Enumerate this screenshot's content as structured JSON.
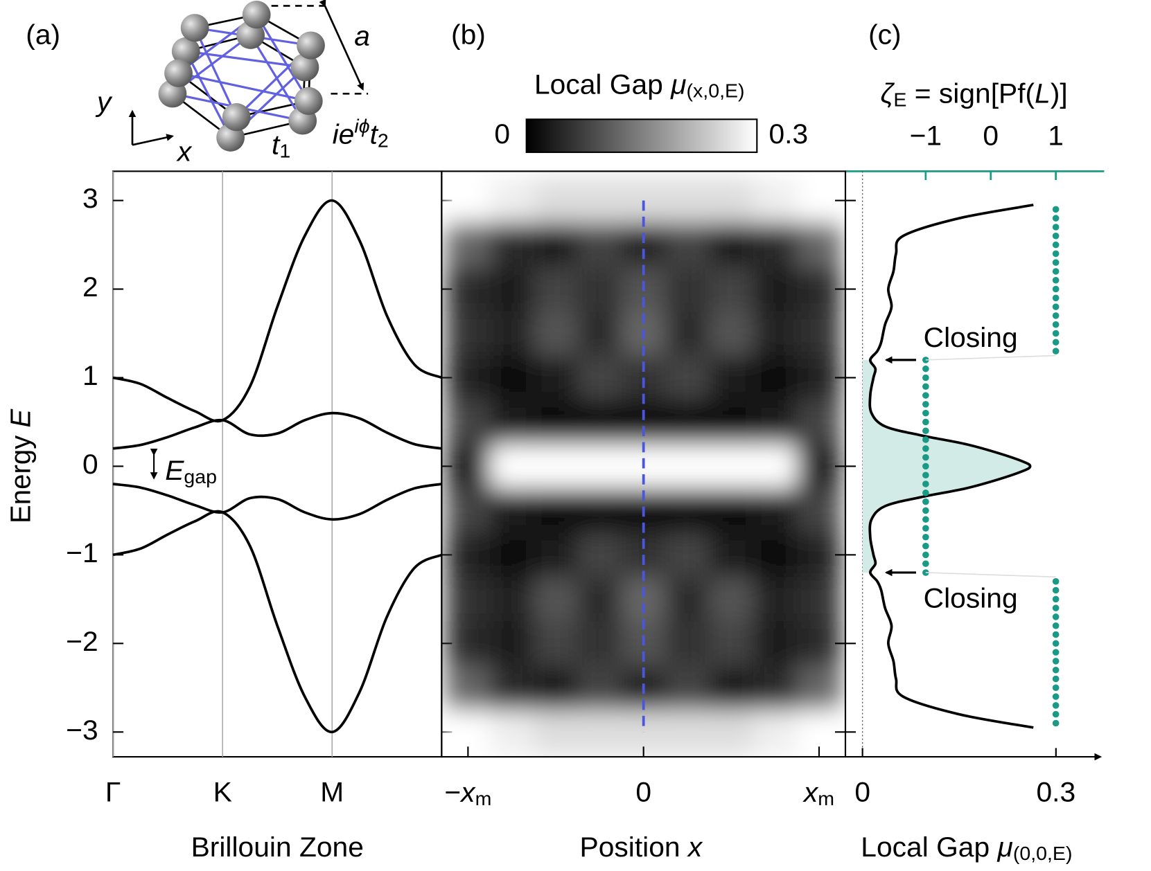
{
  "chart_data": [
    {
      "type": "line",
      "panel_label": "(a)",
      "ylabel": [
        {
          "text": "Energy "
        },
        {
          "text": "E",
          "style": "italic"
        }
      ],
      "xlabel": "Brillouin Zone",
      "x": [
        0,
        0.25,
        0.5,
        0.75,
        1,
        1.25,
        1.5,
        1.75,
        2,
        2.25,
        2.5,
        2.75,
        3
      ],
      "xlim": [
        0,
        3
      ],
      "xticks": [
        {
          "value": 0,
          "label": "Γ"
        },
        {
          "value": 1,
          "label": "K"
        },
        {
          "value": 2,
          "label": "M"
        }
      ],
      "grid_x": true,
      "ylim": [
        -3.28,
        3.33
      ],
      "yticks": [
        {
          "value": -3,
          "label": "−3"
        },
        {
          "value": -2,
          "label": "−2"
        },
        {
          "value": -1,
          "label": "−1"
        },
        0,
        1,
        2,
        3
      ],
      "color": "#000000",
      "series": [
        {
          "values": [
            1,
            0.93,
            0.77,
            0.62,
            0.52,
            0.9,
            1.8,
            2.6,
            3,
            2.55,
            1.7,
            1.15,
            1
          ]
        },
        {
          "values": [
            0.2,
            0.24,
            0.33,
            0.44,
            0.52,
            0.36,
            0.37,
            0.52,
            0.6,
            0.54,
            0.38,
            0.25,
            0.2
          ]
        },
        {
          "values": [
            -0.2,
            -0.24,
            -0.33,
            -0.44,
            -0.52,
            -0.36,
            -0.37,
            -0.52,
            -0.6,
            -0.54,
            -0.38,
            -0.25,
            -0.2
          ]
        },
        {
          "values": [
            -1,
            -0.93,
            -0.77,
            -0.62,
            -0.52,
            -0.9,
            -1.8,
            -2.6,
            -3,
            -2.55,
            -1.7,
            -1.15,
            -1
          ]
        }
      ],
      "gap_label": [
        {
          "text": "E",
          "style": "italic"
        },
        {
          "text": "gap",
          "style": "sub"
        }
      ],
      "inset": {
        "a": "a",
        "y": "y",
        "x": "x",
        "t1": [
          {
            "text": "t",
            "style": "italic"
          },
          {
            "text": "1",
            "style": "sub"
          }
        ],
        "t2": [
          {
            "text": "ie",
            "style": "italic"
          },
          {
            "text": "iϕ",
            "style": "sup"
          },
          {
            "text": "t",
            "style": "italic"
          },
          {
            "text": "2",
            "style": "sub"
          }
        ],
        "t2_color": "#5a5ae6"
      }
    },
    {
      "type": "heatmap",
      "panel_label": "(b)",
      "xlabel": [
        {
          "text": "Position "
        },
        {
          "text": "x",
          "style": "italic"
        }
      ],
      "x": [
        -1,
        -0.75,
        -0.5,
        -0.25,
        0,
        0.25,
        0.5,
        0.75,
        1
      ],
      "y": [
        3,
        2.5,
        2,
        1.5,
        1,
        0.5,
        0,
        -0.5,
        -1,
        -1.5,
        -2,
        -2.5,
        -3
      ],
      "values": [
        [
          0.3,
          0.28,
          0.26,
          0.26,
          0.26,
          0.26,
          0.26,
          0.28,
          0.3
        ],
        [
          0.12,
          0.05,
          0.03,
          0.08,
          0.04,
          0.08,
          0.03,
          0.05,
          0.12
        ],
        [
          0.05,
          0.03,
          0.08,
          0.06,
          0.1,
          0.06,
          0.08,
          0.03,
          0.05
        ],
        [
          0.06,
          0.04,
          0.1,
          0.05,
          0.12,
          0.05,
          0.1,
          0.04,
          0.06
        ],
        [
          0.04,
          0.02,
          0.03,
          0.08,
          0.06,
          0.08,
          0.03,
          0.02,
          0.04
        ],
        [
          0.08,
          0.03,
          0.02,
          0.02,
          0.02,
          0.02,
          0.02,
          0.03,
          0.08
        ],
        [
          0.03,
          0.3,
          0.3,
          0.3,
          0.3,
          0.3,
          0.3,
          0.3,
          0.03
        ],
        [
          0.08,
          0.03,
          0.02,
          0.02,
          0.02,
          0.02,
          0.02,
          0.03,
          0.08
        ],
        [
          0.04,
          0.02,
          0.03,
          0.08,
          0.06,
          0.08,
          0.03,
          0.02,
          0.04
        ],
        [
          0.06,
          0.04,
          0.1,
          0.05,
          0.12,
          0.05,
          0.1,
          0.04,
          0.06
        ],
        [
          0.05,
          0.03,
          0.08,
          0.06,
          0.1,
          0.06,
          0.08,
          0.03,
          0.05
        ],
        [
          0.12,
          0.05,
          0.03,
          0.08,
          0.04,
          0.08,
          0.03,
          0.05,
          0.12
        ],
        [
          0.3,
          0.28,
          0.26,
          0.26,
          0.26,
          0.26,
          0.26,
          0.28,
          0.3
        ]
      ],
      "xlim": [
        -1.15,
        1.15
      ],
      "xticks": [
        {
          "value": -1,
          "label": [
            {
              "text": "−"
            },
            {
              "text": "x",
              "style": "italic"
            },
            {
              "text": "m",
              "style": "sub"
            }
          ]
        },
        0,
        {
          "value": 1,
          "label": [
            {
              "text": "x",
              "style": "italic"
            },
            {
              "text": "m",
              "style": "sub"
            }
          ]
        }
      ],
      "ylim": [
        -3.28,
        3.33
      ],
      "yticks": [
        -3,
        -2,
        -1,
        0,
        1,
        2,
        3
      ],
      "colorbar": {
        "title": [
          {
            "text": "Local Gap "
          },
          {
            "text": "μ",
            "style": "italic"
          },
          {
            "text": "(x,0,E)",
            "style": "sub"
          }
        ],
        "range": [
          0,
          0.3
        ],
        "ticks": [
          0,
          0.3
        ]
      },
      "cut_line": {
        "x": 0,
        "color": "#4a55e0"
      }
    },
    {
      "type": "line",
      "panel_label": "(c)",
      "xlabel": [
        {
          "text": "Local Gap "
        },
        {
          "text": "μ",
          "style": "italic"
        },
        {
          "text": "(0,0,E)",
          "style": "sub"
        }
      ],
      "xlim": [
        -0.0265,
        0.369
      ],
      "xticks": [
        0,
        0.3
      ],
      "x2lim": [
        -2.234,
        1.743
      ],
      "x2ticks": [
        {
          "value": -1,
          "label": "−1"
        },
        0,
        1
      ],
      "x2label": [
        {
          "text": "ζ",
          "style": "italic"
        },
        {
          "text": "E",
          "style": "sub"
        },
        {
          "text": " = sign[Pf("
        },
        {
          "text": "L",
          "style": "italic"
        },
        {
          "text": ")]"
        }
      ],
      "x2color": "#1a9a86",
      "ylim": [
        -3.28,
        3.33
      ],
      "yticks": [
        -3,
        -2,
        -1,
        0,
        1,
        2,
        3
      ],
      "series": [
        {
          "color": "#000000",
          "fill_color": "#d3ebe6",
          "fill_below": 1.2,
          "y": [
            2.95,
            2.8,
            2.6,
            2.4,
            2.2,
            2.0,
            1.8,
            1.6,
            1.4,
            1.3,
            1.2,
            1.1,
            1.0,
            0.8,
            0.6,
            0.45,
            0.35,
            0.25,
            0.15,
            0.05,
            0,
            -0.05,
            -0.15,
            -0.25,
            -0.35,
            -0.45,
            -0.6,
            -0.8,
            -1.0,
            -1.1,
            -1.2,
            -1.3,
            -1.4,
            -1.6,
            -1.8,
            -2.0,
            -2.2,
            -2.4,
            -2.6,
            -2.8,
            -2.95
          ],
          "values": [
            0.265,
            0.15,
            0.063,
            0.052,
            0.048,
            0.04,
            0.045,
            0.035,
            0.029,
            0.023,
            0.012,
            0.02,
            0.017,
            0.012,
            0.014,
            0.035,
            0.09,
            0.16,
            0.21,
            0.25,
            0.26,
            0.25,
            0.21,
            0.16,
            0.09,
            0.035,
            0.014,
            0.012,
            0.017,
            0.02,
            0.012,
            0.023,
            0.029,
            0.035,
            0.045,
            0.04,
            0.048,
            0.052,
            0.063,
            0.15,
            0.265
          ]
        },
        {
          "type": "scatter",
          "axis": "x2",
          "color": "#1a9a86",
          "y": [
            -2.9,
            -2.8,
            -2.7,
            -2.6,
            -2.5,
            -2.4,
            -2.3,
            -2.2,
            -2.1,
            -2.0,
            -1.9,
            -1.8,
            -1.7,
            -1.6,
            -1.5,
            -1.4,
            -1.3,
            -1.2,
            -1.1,
            -1.0,
            -0.9,
            -0.8,
            -0.7,
            -0.6,
            -0.5,
            -0.4,
            -0.3,
            -0.2,
            -0.1,
            0,
            0.1,
            0.2,
            0.3,
            0.4,
            0.5,
            0.6,
            0.7,
            0.8,
            0.9,
            1.0,
            1.1,
            1.2,
            1.3,
            1.4,
            1.5,
            1.6,
            1.7,
            1.8,
            1.9,
            2.0,
            2.1,
            2.2,
            2.3,
            2.4,
            2.5,
            2.6,
            2.7,
            2.8,
            2.9
          ],
          "values": [
            1,
            1,
            1,
            1,
            1,
            1,
            1,
            1,
            1,
            1,
            1,
            1,
            1,
            1,
            1,
            1,
            1,
            -1,
            -1,
            -1,
            -1,
            -1,
            -1,
            -1,
            -1,
            -1,
            -1,
            -1,
            -1,
            -1,
            -1,
            -1,
            -1,
            -1,
            -1,
            -1,
            -1,
            -1,
            -1,
            -1,
            -1,
            -1,
            1,
            1,
            1,
            1,
            1,
            1,
            1,
            1,
            1,
            1,
            1,
            1,
            1,
            1,
            1,
            1,
            1
          ]
        }
      ],
      "annotations": [
        {
          "text": "Closing",
          "y": 1.2
        },
        {
          "text": "Closing",
          "y": -1.2
        }
      ]
    }
  ]
}
